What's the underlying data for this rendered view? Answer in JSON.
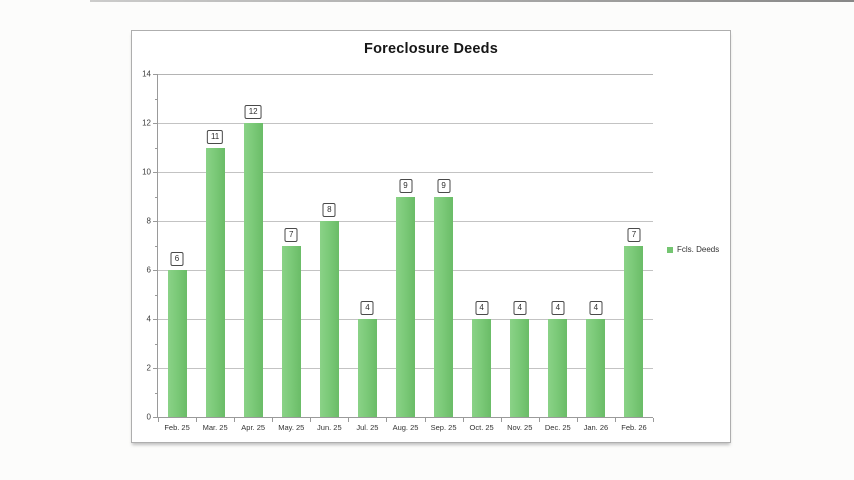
{
  "page": {
    "background_color": "#fcfcfb"
  },
  "chart_data": {
    "type": "bar",
    "title": "Foreclosure Deeds",
    "categories": [
      "Feb. 25",
      "Mar. 25",
      "Apr. 25",
      "May. 25",
      "Jun. 25",
      "Jul. 25",
      "Aug. 25",
      "Sep. 25",
      "Oct. 25",
      "Nov. 25",
      "Dec. 25",
      "Jan. 26",
      "Feb. 26"
    ],
    "series": [
      {
        "name": "Fcls. Deeds",
        "values": [
          6,
          11,
          12,
          7,
          8,
          4,
          9,
          9,
          4,
          4,
          4,
          4,
          7
        ]
      }
    ],
    "xlabel": "",
    "ylabel": "",
    "ylim": [
      0,
      14
    ],
    "ytick_step": 2,
    "yticks": [
      0,
      2,
      4,
      6,
      8,
      10,
      12,
      14
    ],
    "grid": true,
    "data_labels": true,
    "legend_position": "right",
    "bar_color": "#7cca79",
    "gridline_color": "#c3c3c3",
    "axis_color": "#9a9a9a"
  }
}
